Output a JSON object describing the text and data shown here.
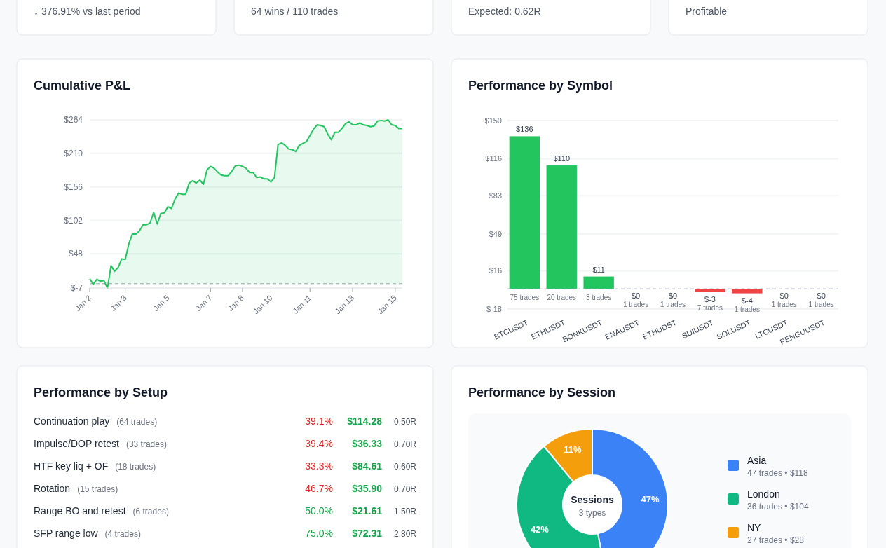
{
  "chart_data": [
    {
      "type": "other",
      "annotations": [
        "↓ 376.91% vs last period",
        "64 wins / 110 trades",
        "Expected: 0.62R",
        "Profitable"
      ]
    },
    {
      "type": "area",
      "title": "Cumulative P&L",
      "categories": [
        "Jan 2",
        null,
        null,
        null,
        null,
        null,
        null,
        null,
        null,
        null,
        "Jan 3",
        null,
        null,
        null,
        null,
        null,
        null,
        null,
        null,
        null,
        null,
        null,
        "Jan 5",
        null,
        null,
        null,
        null,
        null,
        null,
        null,
        null,
        null,
        null,
        null,
        "Jan 7",
        null,
        null,
        null,
        null,
        null,
        null,
        null,
        null,
        "Jan 8",
        null,
        null,
        null,
        null,
        null,
        null,
        null,
        "Jan 10",
        null,
        null,
        null,
        null,
        null,
        null,
        null,
        null,
        null,
        null,
        "Jan 11",
        null,
        null,
        null,
        null,
        null,
        null,
        null,
        null,
        null,
        null,
        null,
        "Jan 13",
        null,
        null,
        null,
        null,
        null,
        null,
        null,
        null,
        null,
        null,
        null,
        "Jan 15",
        null,
        null
      ],
      "series": [
        {
          "color": "#22c55e",
          "values": [
            8,
            -1,
            7,
            4,
            5,
            -7,
            29,
            20,
            26,
            40,
            39,
            64,
            80,
            80,
            85,
            95,
            95,
            98,
            115,
            96,
            113,
            114,
            124,
            121,
            136,
            146,
            144,
            144,
            162,
            166,
            162,
            167,
            160,
            183,
            189,
            186,
            180,
            175,
            174,
            174,
            181,
            190,
            191,
            189,
            186,
            179,
            179,
            171,
            172,
            169,
            169,
            164,
            171,
            224,
            227,
            223,
            217,
            216,
            213,
            223,
            226,
            229,
            239,
            249,
            256,
            255,
            253,
            241,
            232,
            244,
            244,
            250,
            258,
            261,
            256,
            256,
            259,
            256,
            255,
            253,
            254,
            262,
            263,
            262,
            264,
            256,
            255,
            250,
            250
          ]
        }
      ],
      "ylim": [
        -7,
        264
      ],
      "yticks": [
        {
          "value": -7,
          "label": "$-7"
        },
        {
          "value": 48,
          "label": "$48"
        },
        {
          "value": 102,
          "label": "$102"
        },
        {
          "value": 156,
          "label": "$156"
        },
        {
          "value": 210,
          "label": "$210"
        },
        {
          "value": 264,
          "label": "$264"
        }
      ],
      "grid": "y",
      "marker": "none",
      "ref_lines": [
        {
          "axis": "y",
          "value": 0,
          "color": "#9ca3af",
          "line_style": "dashed"
        }
      ]
    },
    {
      "type": "bar",
      "title": "Performance by Symbol",
      "categories": [
        "BTCUSDT",
        "ETHUSDT",
        "BONKUSDT",
        "ENAUSDT",
        "ETHUDST",
        "SUIUSDT",
        "SOLUSDT",
        "LTCUSDT",
        "PENGUUSDT"
      ],
      "values": [
        136,
        110,
        11,
        0,
        0,
        -3,
        -4,
        0,
        0
      ],
      "colors": [
        "#22c55e",
        "#22c55e",
        "#22c55e",
        "#22c55e",
        "#22c55e",
        "#ef4444",
        "#ef4444",
        "#22c55e",
        "#22c55e"
      ],
      "value_labels": [
        "$136",
        "$110",
        "$11",
        "$0",
        "$0",
        "$-3",
        "$-4",
        "$0",
        "$0"
      ],
      "annotations": [
        {
          "text": "75 trades",
          "x": "BTCUSDT",
          "y": 0
        },
        {
          "text": "20 trades",
          "x": "ETHUSDT",
          "y": 0
        },
        {
          "text": "3 trades",
          "x": "BONKUSDT",
          "y": 0
        },
        {
          "text": "1 trades",
          "x": "ENAUSDT",
          "y": 0
        },
        {
          "text": "1 trades",
          "x": "ETHUDST",
          "y": 0
        },
        {
          "text": "7 trades",
          "x": "SUIUSDT",
          "y": -3
        },
        {
          "text": "1 trades",
          "x": "SOLUSDT",
          "y": -4
        },
        {
          "text": "1 trades",
          "x": "LTCUSDT",
          "y": 0
        },
        {
          "text": "1 trades",
          "x": "PENGUUSDT",
          "y": 0
        }
      ],
      "ylim": [
        -18,
        150
      ],
      "yticks": [
        {
          "value": -18,
          "label": "$-18"
        },
        {
          "value": 16,
          "label": "$16"
        },
        {
          "value": 49,
          "label": "$49"
        },
        {
          "value": 83,
          "label": "$83"
        },
        {
          "value": 116,
          "label": "$116"
        },
        {
          "value": 150,
          "label": "$150"
        }
      ],
      "grid": "y",
      "ref_lines": [
        {
          "axis": "y",
          "value": 0,
          "color": "#9ca3af",
          "line_style": "dashed"
        }
      ]
    },
    {
      "type": "other",
      "title": "Performance by Setup",
      "categories": [
        "Continuation play",
        "Impulse/DOP retest",
        "HTF key liq + OF",
        "Rotation",
        "Range BO and retest",
        "SFP range low"
      ],
      "annotations": [
        "(64 trades)",
        "39.1%",
        "$114.28",
        "0.50R",
        "(33 trades)",
        "39.4%",
        "$36.33",
        "0.70R",
        "(18 trades)",
        "33.3%",
        "$84.61",
        "0.60R",
        "(15 trades)",
        "46.7%",
        "$35.90",
        "0.70R",
        "(6 trades)",
        "50.0%",
        "$21.61",
        "1.50R",
        "(4 trades)",
        "75.0%",
        "$72.31",
        "2.80R"
      ]
    },
    {
      "type": "donut",
      "title": "Performance by Session",
      "categories": [
        "Asia",
        "London",
        "NY"
      ],
      "values": [
        47,
        42,
        11
      ],
      "colors": [
        "#3b82f6",
        "#10b981",
        "#f59e0b"
      ],
      "value_labels": [
        "47%",
        "42%",
        "11%"
      ],
      "legend": "right",
      "annotations": [
        "47 trades • $118",
        "36 trades • $104",
        "27 trades • $28",
        "Sessions",
        "3 types"
      ]
    }
  ]
}
